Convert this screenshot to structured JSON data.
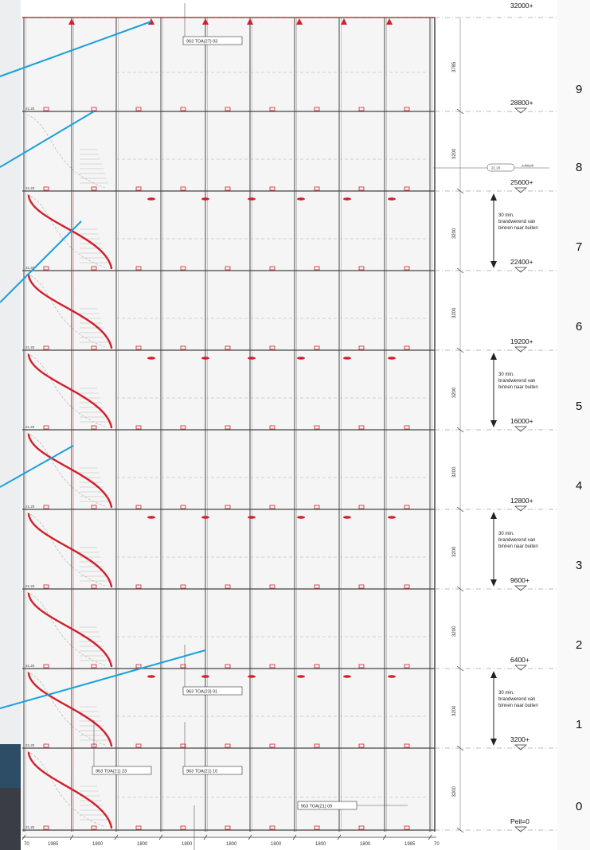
{
  "top_elevation": "32000+",
  "levels": [
    {
      "number": "9",
      "elevation": "28800+",
      "height_dim": "3785"
    },
    {
      "number": "8",
      "elevation": "25600+",
      "height_dim": "3200"
    },
    {
      "number": "7",
      "elevation": "22400+",
      "height_dim": "3200"
    },
    {
      "number": "6",
      "elevation": "19200+",
      "height_dim": "3200"
    },
    {
      "number": "5",
      "elevation": "16000+",
      "height_dim": "3200"
    },
    {
      "number": "4",
      "elevation": "12800+",
      "height_dim": "3200"
    },
    {
      "number": "3",
      "elevation": "9600+",
      "height_dim": "3200"
    },
    {
      "number": "2",
      "elevation": "6400+",
      "height_dim": "3200"
    },
    {
      "number": "1",
      "elevation": "3200+",
      "height_dim": "3200"
    },
    {
      "number": "0",
      "elevation": "Peil=0",
      "height_dim": "3200"
    }
  ],
  "fire_note": "30 min. brandwerend van binnen naar buiten",
  "fire_note_lines": [
    "30 min.",
    "brandwerend van",
    "binnen naar buiten"
  ],
  "floor_tag": "21.20",
  "section_tags": {
    "top": "963 TOA(27) 03",
    "level1": "963 TOA(23) 01",
    "lower_left": "963 TOA(21) 23",
    "lower_mid": "963 TOA(21) 10",
    "lower_right": "963 TOA(21) 09"
  },
  "side_detail": {
    "tag": "21.20",
    "note": "zolwerk"
  },
  "bottom_dims": [
    "70",
    "1985",
    "1800",
    "1800",
    "1800",
    "1800",
    "1800",
    "1800",
    "1800",
    "1985",
    "70"
  ],
  "colors": {
    "line": "#555555",
    "red": "#d0202a",
    "blue": "#1aa0dd",
    "level_line": "#777777"
  }
}
